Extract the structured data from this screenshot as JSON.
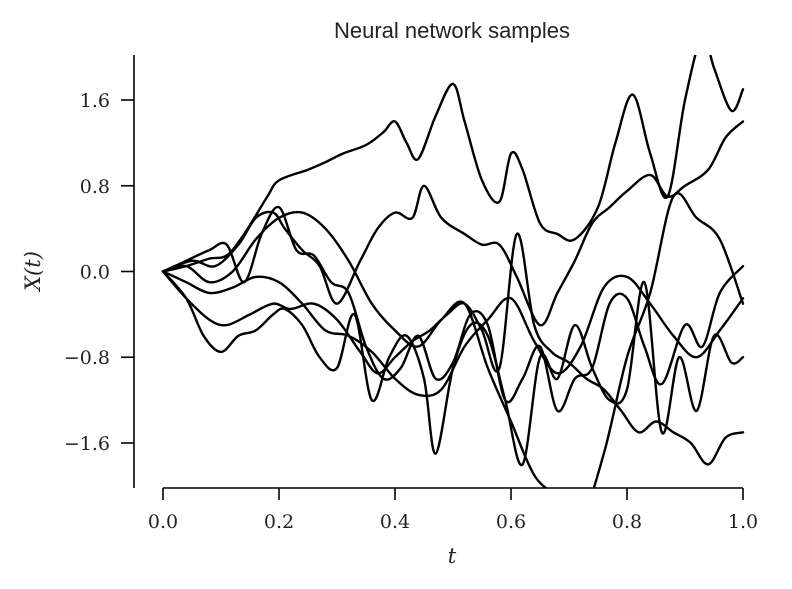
{
  "chart_data": {
    "type": "line",
    "title": "Neural network samples",
    "xlabel": "t",
    "ylabel": "X(t)",
    "xlim": [
      0.0,
      1.0
    ],
    "ylim": [
      -2.02,
      2.02
    ],
    "x_ticks": [
      0.0,
      0.2,
      0.4,
      0.6,
      0.8,
      1.0
    ],
    "x_tick_labels": [
      "0.0",
      "0.2",
      "0.4",
      "0.6",
      "0.8",
      "1.0"
    ],
    "y_ticks": [
      1.6,
      0.8,
      0.0,
      -0.8,
      -1.6
    ],
    "y_tick_labels": [
      "1.6",
      "0.8",
      "0.0",
      "−0.8",
      "−1.6"
    ],
    "grid": false,
    "line_color": "#000000",
    "series": [
      {
        "x": [
          0.0,
          0.04,
          0.08,
          0.11,
          0.14,
          0.18,
          0.2,
          0.25,
          0.28,
          0.31,
          0.35,
          0.38,
          0.4,
          0.42,
          0.44,
          0.47,
          0.5,
          0.52,
          0.55,
          0.58,
          0.6,
          0.62,
          0.65,
          0.68,
          0.71,
          0.75,
          0.78,
          0.81,
          0.84,
          0.87,
          0.9,
          0.93,
          0.95,
          0.98,
          1.0
        ],
        "y": [
          0.0,
          0.05,
          0.12,
          0.15,
          0.35,
          0.7,
          0.85,
          0.95,
          1.02,
          1.1,
          1.18,
          1.3,
          1.4,
          1.2,
          1.05,
          1.45,
          1.75,
          1.4,
          0.85,
          0.65,
          1.1,
          0.95,
          0.45,
          0.35,
          0.3,
          0.6,
          1.2,
          1.65,
          1.1,
          0.7,
          1.6,
          2.2,
          1.9,
          1.5,
          1.7
        ]
      },
      {
        "x": [
          0.0,
          0.05,
          0.09,
          0.13,
          0.16,
          0.19,
          0.21,
          0.24,
          0.27,
          0.3,
          0.34,
          0.37,
          0.4,
          0.43,
          0.45,
          0.48,
          0.52,
          0.55,
          0.58,
          0.61,
          0.65,
          0.68,
          0.71,
          0.74,
          0.77,
          0.8,
          0.84,
          0.87,
          0.9,
          0.94,
          0.97,
          1.0
        ],
        "y": [
          0.0,
          0.1,
          0.05,
          0.25,
          0.5,
          0.55,
          0.4,
          0.2,
          0.05,
          -0.3,
          0.1,
          0.4,
          0.55,
          0.5,
          0.8,
          0.5,
          0.35,
          0.25,
          0.25,
          -0.05,
          -0.5,
          -0.2,
          0.1,
          0.45,
          0.6,
          0.75,
          0.9,
          0.7,
          0.8,
          0.95,
          1.25,
          1.4
        ]
      },
      {
        "x": [
          0.0,
          0.04,
          0.08,
          0.11,
          0.14,
          0.17,
          0.2,
          0.23,
          0.26,
          0.29,
          0.32,
          0.35,
          0.38,
          0.41,
          0.44,
          0.47,
          0.5,
          0.53,
          0.56,
          0.59,
          0.62,
          0.65,
          0.68,
          0.71,
          0.74,
          0.77,
          0.8,
          0.83,
          0.86,
          0.9,
          0.93,
          0.96,
          1.0
        ],
        "y": [
          0.0,
          0.1,
          0.2,
          0.25,
          -0.1,
          0.35,
          0.6,
          0.2,
          0.15,
          -0.1,
          -0.2,
          -0.7,
          -1.0,
          -0.9,
          -0.6,
          -1.0,
          -0.85,
          -0.4,
          -0.5,
          -1.2,
          -1.0,
          -0.7,
          -1.3,
          -1.0,
          -0.9,
          -0.3,
          -0.25,
          -0.7,
          -1.05,
          -0.5,
          -0.7,
          -0.2,
          0.05
        ]
      },
      {
        "x": [
          0.0,
          0.04,
          0.07,
          0.1,
          0.13,
          0.16,
          0.19,
          0.21,
          0.24,
          0.27,
          0.3,
          0.33,
          0.36,
          0.39,
          0.42,
          0.45,
          0.47,
          0.5,
          0.53,
          0.56,
          0.59,
          0.62,
          0.65,
          0.68,
          0.71,
          0.74,
          0.77,
          0.8,
          0.83,
          0.86,
          0.89,
          0.92,
          0.95,
          0.98,
          1.0
        ],
        "y": [
          0.0,
          -0.25,
          -0.6,
          -0.75,
          -0.6,
          -0.55,
          -0.4,
          -0.35,
          -0.5,
          -0.8,
          -0.9,
          -0.4,
          -1.2,
          -0.8,
          -0.6,
          -1.0,
          -1.7,
          -0.9,
          -0.5,
          -0.6,
          -1.2,
          -1.8,
          -0.8,
          -1.0,
          -0.5,
          -0.9,
          -1.2,
          -1.1,
          -0.1,
          -1.5,
          -0.8,
          -1.3,
          -0.6,
          -0.85,
          -0.8
        ]
      },
      {
        "x": [
          0.0,
          0.04,
          0.08,
          0.11,
          0.15,
          0.19,
          0.22,
          0.26,
          0.3,
          0.34,
          0.37,
          0.4,
          0.43,
          0.46,
          0.49,
          0.52,
          0.55,
          0.58,
          0.61,
          0.64,
          0.67,
          0.7,
          0.73,
          0.76,
          0.79,
          0.82,
          0.85,
          0.88,
          0.91,
          0.94,
          0.97,
          1.0
        ],
        "y": [
          0.0,
          -0.25,
          -0.45,
          -0.5,
          -0.4,
          -0.3,
          -0.35,
          -0.3,
          -0.45,
          -0.75,
          -0.95,
          -0.8,
          -0.65,
          -0.55,
          -0.4,
          -0.3,
          -0.55,
          -0.9,
          0.35,
          -0.5,
          -0.75,
          -0.85,
          -1.0,
          -1.1,
          -1.3,
          -1.5,
          -1.4,
          -1.5,
          -1.6,
          -1.8,
          -1.55,
          -1.5
        ]
      },
      {
        "x": [
          0.0,
          0.04,
          0.08,
          0.12,
          0.16,
          0.2,
          0.24,
          0.28,
          0.32,
          0.36,
          0.4,
          0.44,
          0.48,
          0.52,
          0.56,
          0.6,
          0.64,
          0.68,
          0.72,
          0.76,
          0.8,
          0.84,
          0.88,
          0.92,
          0.96,
          1.0
        ],
        "y": [
          0.0,
          0.05,
          -0.1,
          0.0,
          0.3,
          0.5,
          0.55,
          0.4,
          0.1,
          -0.3,
          -0.55,
          -0.7,
          -0.45,
          -0.3,
          -0.9,
          -1.4,
          -1.9,
          -2.1,
          -2.3,
          -1.7,
          -0.8,
          -0.2,
          0.7,
          0.5,
          0.3,
          -0.3
        ]
      },
      {
        "x": [
          0.0,
          0.04,
          0.08,
          0.12,
          0.16,
          0.2,
          0.24,
          0.28,
          0.32,
          0.36,
          0.4,
          0.44,
          0.48,
          0.52,
          0.56,
          0.6,
          0.64,
          0.68,
          0.72,
          0.76,
          0.8,
          0.84,
          0.88,
          0.92,
          0.96,
          1.0
        ],
        "y": [
          0.0,
          -0.1,
          -0.2,
          -0.15,
          -0.05,
          -0.1,
          -0.3,
          -0.55,
          -0.6,
          -0.75,
          -1.0,
          -1.15,
          -1.1,
          -0.7,
          -0.45,
          -0.25,
          -0.65,
          -0.95,
          -0.7,
          -0.15,
          -0.05,
          -0.3,
          -0.6,
          -0.8,
          -0.55,
          -0.25
        ]
      }
    ]
  }
}
